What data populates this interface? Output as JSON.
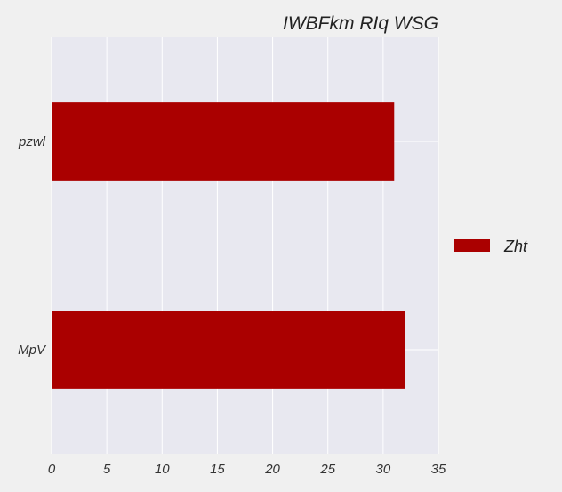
{
  "chart_data": {
    "type": "bar",
    "orientation": "horizontal",
    "title": "IWBFkm RIq WSG",
    "xlabel": "",
    "ylabel": "",
    "categories": [
      "pzwl",
      "MpV"
    ],
    "series": [
      {
        "name": "Zht",
        "values": [
          31,
          32
        ],
        "color": "#aa0000"
      }
    ],
    "xlim": [
      0,
      35
    ],
    "xticks": [
      0,
      5,
      10,
      15,
      20,
      25,
      30,
      35
    ],
    "grid": true,
    "legend_position": "right",
    "plot_background": "#e8e8f0",
    "page_background": "#f0f0f0"
  }
}
